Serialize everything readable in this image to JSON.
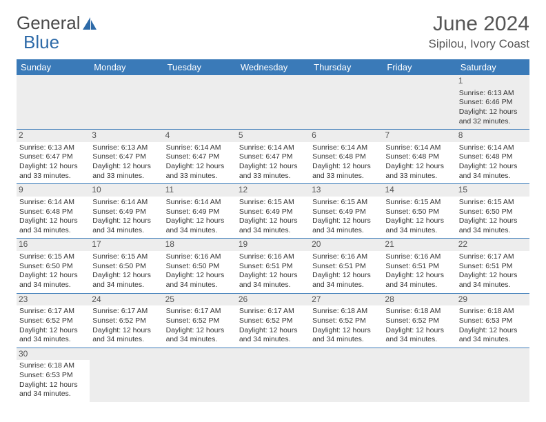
{
  "brand": {
    "general": "General",
    "blue": "Blue"
  },
  "title": "June 2024",
  "location": "Sipilou, Ivory Coast",
  "colors": {
    "header_bg": "#3a7ab8",
    "header_fg": "#ffffff",
    "daynum_bg": "#ededed",
    "border": "#3a7ab8"
  },
  "day_headers": [
    "Sunday",
    "Monday",
    "Tuesday",
    "Wednesday",
    "Thursday",
    "Friday",
    "Saturday"
  ],
  "weeks": [
    [
      null,
      null,
      null,
      null,
      null,
      null,
      {
        "n": "1",
        "sunrise": "Sunrise: 6:13 AM",
        "sunset": "Sunset: 6:46 PM",
        "daylight1": "Daylight: 12 hours",
        "daylight2": "and 32 minutes."
      }
    ],
    [
      {
        "n": "2",
        "sunrise": "Sunrise: 6:13 AM",
        "sunset": "Sunset: 6:47 PM",
        "daylight1": "Daylight: 12 hours",
        "daylight2": "and 33 minutes."
      },
      {
        "n": "3",
        "sunrise": "Sunrise: 6:13 AM",
        "sunset": "Sunset: 6:47 PM",
        "daylight1": "Daylight: 12 hours",
        "daylight2": "and 33 minutes."
      },
      {
        "n": "4",
        "sunrise": "Sunrise: 6:14 AM",
        "sunset": "Sunset: 6:47 PM",
        "daylight1": "Daylight: 12 hours",
        "daylight2": "and 33 minutes."
      },
      {
        "n": "5",
        "sunrise": "Sunrise: 6:14 AM",
        "sunset": "Sunset: 6:47 PM",
        "daylight1": "Daylight: 12 hours",
        "daylight2": "and 33 minutes."
      },
      {
        "n": "6",
        "sunrise": "Sunrise: 6:14 AM",
        "sunset": "Sunset: 6:48 PM",
        "daylight1": "Daylight: 12 hours",
        "daylight2": "and 33 minutes."
      },
      {
        "n": "7",
        "sunrise": "Sunrise: 6:14 AM",
        "sunset": "Sunset: 6:48 PM",
        "daylight1": "Daylight: 12 hours",
        "daylight2": "and 33 minutes."
      },
      {
        "n": "8",
        "sunrise": "Sunrise: 6:14 AM",
        "sunset": "Sunset: 6:48 PM",
        "daylight1": "Daylight: 12 hours",
        "daylight2": "and 34 minutes."
      }
    ],
    [
      {
        "n": "9",
        "sunrise": "Sunrise: 6:14 AM",
        "sunset": "Sunset: 6:48 PM",
        "daylight1": "Daylight: 12 hours",
        "daylight2": "and 34 minutes."
      },
      {
        "n": "10",
        "sunrise": "Sunrise: 6:14 AM",
        "sunset": "Sunset: 6:49 PM",
        "daylight1": "Daylight: 12 hours",
        "daylight2": "and 34 minutes."
      },
      {
        "n": "11",
        "sunrise": "Sunrise: 6:14 AM",
        "sunset": "Sunset: 6:49 PM",
        "daylight1": "Daylight: 12 hours",
        "daylight2": "and 34 minutes."
      },
      {
        "n": "12",
        "sunrise": "Sunrise: 6:15 AM",
        "sunset": "Sunset: 6:49 PM",
        "daylight1": "Daylight: 12 hours",
        "daylight2": "and 34 minutes."
      },
      {
        "n": "13",
        "sunrise": "Sunrise: 6:15 AM",
        "sunset": "Sunset: 6:49 PM",
        "daylight1": "Daylight: 12 hours",
        "daylight2": "and 34 minutes."
      },
      {
        "n": "14",
        "sunrise": "Sunrise: 6:15 AM",
        "sunset": "Sunset: 6:50 PM",
        "daylight1": "Daylight: 12 hours",
        "daylight2": "and 34 minutes."
      },
      {
        "n": "15",
        "sunrise": "Sunrise: 6:15 AM",
        "sunset": "Sunset: 6:50 PM",
        "daylight1": "Daylight: 12 hours",
        "daylight2": "and 34 minutes."
      }
    ],
    [
      {
        "n": "16",
        "sunrise": "Sunrise: 6:15 AM",
        "sunset": "Sunset: 6:50 PM",
        "daylight1": "Daylight: 12 hours",
        "daylight2": "and 34 minutes."
      },
      {
        "n": "17",
        "sunrise": "Sunrise: 6:15 AM",
        "sunset": "Sunset: 6:50 PM",
        "daylight1": "Daylight: 12 hours",
        "daylight2": "and 34 minutes."
      },
      {
        "n": "18",
        "sunrise": "Sunrise: 6:16 AM",
        "sunset": "Sunset: 6:50 PM",
        "daylight1": "Daylight: 12 hours",
        "daylight2": "and 34 minutes."
      },
      {
        "n": "19",
        "sunrise": "Sunrise: 6:16 AM",
        "sunset": "Sunset: 6:51 PM",
        "daylight1": "Daylight: 12 hours",
        "daylight2": "and 34 minutes."
      },
      {
        "n": "20",
        "sunrise": "Sunrise: 6:16 AM",
        "sunset": "Sunset: 6:51 PM",
        "daylight1": "Daylight: 12 hours",
        "daylight2": "and 34 minutes."
      },
      {
        "n": "21",
        "sunrise": "Sunrise: 6:16 AM",
        "sunset": "Sunset: 6:51 PM",
        "daylight1": "Daylight: 12 hours",
        "daylight2": "and 34 minutes."
      },
      {
        "n": "22",
        "sunrise": "Sunrise: 6:17 AM",
        "sunset": "Sunset: 6:51 PM",
        "daylight1": "Daylight: 12 hours",
        "daylight2": "and 34 minutes."
      }
    ],
    [
      {
        "n": "23",
        "sunrise": "Sunrise: 6:17 AM",
        "sunset": "Sunset: 6:52 PM",
        "daylight1": "Daylight: 12 hours",
        "daylight2": "and 34 minutes."
      },
      {
        "n": "24",
        "sunrise": "Sunrise: 6:17 AM",
        "sunset": "Sunset: 6:52 PM",
        "daylight1": "Daylight: 12 hours",
        "daylight2": "and 34 minutes."
      },
      {
        "n": "25",
        "sunrise": "Sunrise: 6:17 AM",
        "sunset": "Sunset: 6:52 PM",
        "daylight1": "Daylight: 12 hours",
        "daylight2": "and 34 minutes."
      },
      {
        "n": "26",
        "sunrise": "Sunrise: 6:17 AM",
        "sunset": "Sunset: 6:52 PM",
        "daylight1": "Daylight: 12 hours",
        "daylight2": "and 34 minutes."
      },
      {
        "n": "27",
        "sunrise": "Sunrise: 6:18 AM",
        "sunset": "Sunset: 6:52 PM",
        "daylight1": "Daylight: 12 hours",
        "daylight2": "and 34 minutes."
      },
      {
        "n": "28",
        "sunrise": "Sunrise: 6:18 AM",
        "sunset": "Sunset: 6:52 PM",
        "daylight1": "Daylight: 12 hours",
        "daylight2": "and 34 minutes."
      },
      {
        "n": "29",
        "sunrise": "Sunrise: 6:18 AM",
        "sunset": "Sunset: 6:53 PM",
        "daylight1": "Daylight: 12 hours",
        "daylight2": "and 34 minutes."
      }
    ],
    [
      {
        "n": "30",
        "sunrise": "Sunrise: 6:18 AM",
        "sunset": "Sunset: 6:53 PM",
        "daylight1": "Daylight: 12 hours",
        "daylight2": "and 34 minutes."
      },
      null,
      null,
      null,
      null,
      null,
      null
    ]
  ]
}
